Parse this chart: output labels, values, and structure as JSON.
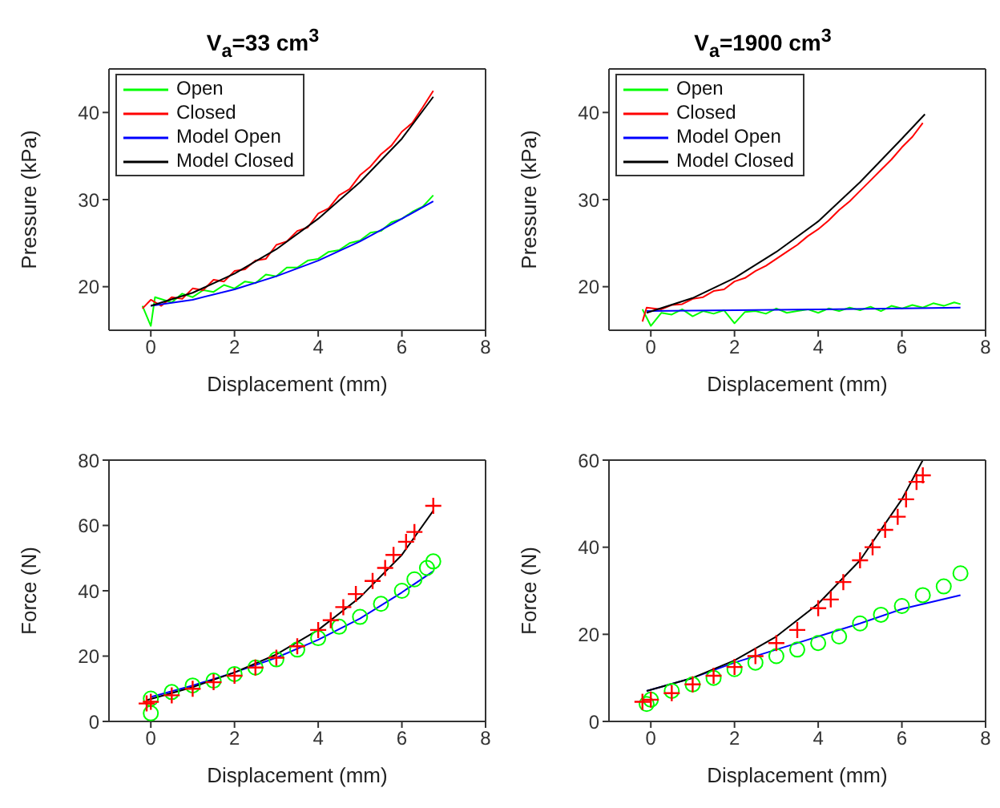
{
  "chart_data": [
    {
      "type": "line",
      "title": "V$_{a}$=33 cm$^{3}$",
      "xlabel": "Displacement (mm)",
      "ylabel": "Pressure (kPa)",
      "xlim": [
        -1,
        8
      ],
      "xticks": [
        0,
        2,
        4,
        6,
        8
      ],
      "ylim": [
        15,
        45
      ],
      "yticks": [
        20,
        30,
        40
      ],
      "legend": "top left",
      "series": [
        {
          "name": "Open",
          "color": "#00ff00",
          "marker": "none",
          "x": [
            -0.2,
            0,
            0.1,
            0.5,
            0.75,
            1,
            1.25,
            1.5,
            1.75,
            2,
            2.25,
            2.5,
            2.75,
            3,
            3.25,
            3.5,
            3.75,
            4,
            4.25,
            4.5,
            4.75,
            5,
            5.25,
            5.5,
            5.75,
            6,
            6.25,
            6.5,
            6.75
          ],
          "values": [
            17.8,
            15.5,
            18.8,
            18.2,
            19.2,
            18.8,
            19.6,
            19.4,
            20.2,
            19.8,
            20.6,
            20.4,
            21.4,
            21.2,
            22.2,
            22.2,
            23.0,
            23.2,
            24.0,
            24.2,
            25.0,
            25.3,
            26.2,
            26.4,
            27.4,
            27.8,
            28.6,
            29.2,
            30.5
          ]
        },
        {
          "name": "Closed",
          "color": "#ff0000",
          "marker": "none",
          "x": [
            -0.2,
            0,
            0.25,
            0.5,
            0.75,
            1,
            1.25,
            1.5,
            1.75,
            2,
            2.25,
            2.5,
            2.75,
            3,
            3.25,
            3.5,
            3.75,
            4,
            4.25,
            4.5,
            4.75,
            5,
            5.25,
            5.5,
            5.75,
            6,
            6.25,
            6.5,
            6.75
          ],
          "values": [
            17.5,
            18.5,
            17.8,
            18.8,
            18.6,
            19.8,
            19.6,
            20.8,
            20.6,
            21.8,
            22.0,
            23.0,
            23.2,
            24.8,
            25.2,
            26.4,
            26.8,
            28.4,
            29.0,
            30.5,
            31.2,
            32.8,
            33.8,
            35.2,
            36.2,
            37.8,
            38.8,
            40.6,
            42.5
          ]
        },
        {
          "name": "Model Open",
          "color": "#0000ff",
          "marker": "none",
          "x": [
            0,
            1,
            2,
            3,
            4,
            5,
            6,
            6.75
          ],
          "values": [
            17.8,
            18.5,
            19.7,
            21.2,
            23,
            25.2,
            27.8,
            29.8
          ]
        },
        {
          "name": "Model Closed",
          "color": "#000000",
          "marker": "none",
          "x": [
            0,
            1,
            2,
            3,
            4,
            5,
            6,
            6.75
          ],
          "values": [
            17.8,
            19.3,
            21.5,
            24.3,
            27.8,
            32,
            37,
            41.8
          ]
        }
      ]
    },
    {
      "type": "line",
      "title": "V$_{a}$=1900 cm$^{3}$",
      "xlabel": "Displacement (mm)",
      "ylabel": "Pressure (kPa)",
      "xlim": [
        -1,
        8
      ],
      "xticks": [
        0,
        2,
        4,
        6,
        8
      ],
      "ylim": [
        15,
        45
      ],
      "yticks": [
        20,
        30,
        40
      ],
      "legend": "top left",
      "series": [
        {
          "name": "Open",
          "color": "#00ff00",
          "marker": "none",
          "x": [
            -0.2,
            0,
            0.25,
            0.5,
            0.75,
            1,
            1.25,
            1.5,
            1.75,
            2,
            2.25,
            2.5,
            2.75,
            3,
            3.25,
            3.5,
            3.75,
            4,
            4.25,
            4.5,
            4.75,
            5,
            5.25,
            5.5,
            5.75,
            6,
            6.25,
            6.5,
            6.75,
            7,
            7.25,
            7.4
          ],
          "values": [
            17.4,
            15.5,
            17.0,
            16.8,
            17.4,
            16.6,
            17.2,
            16.9,
            17.3,
            15.8,
            17.1,
            17.2,
            16.9,
            17.5,
            17.0,
            17.2,
            17.4,
            17.0,
            17.5,
            17.2,
            17.6,
            17.3,
            17.7,
            17.2,
            17.8,
            17.5,
            17.9,
            17.6,
            18.1,
            17.8,
            18.2,
            18.0
          ]
        },
        {
          "name": "Closed",
          "color": "#ff0000",
          "marker": "none",
          "x": [
            -0.2,
            -0.1,
            0.25,
            0.5,
            0.75,
            1,
            1.25,
            1.5,
            1.75,
            2,
            2.25,
            2.5,
            2.75,
            3,
            3.25,
            3.5,
            3.75,
            4,
            4.25,
            4.5,
            4.75,
            5,
            5.25,
            5.5,
            5.75,
            6,
            6.25,
            6.5
          ],
          "values": [
            16.0,
            17.6,
            17.4,
            17.9,
            18.0,
            18.6,
            18.8,
            19.5,
            19.7,
            20.6,
            21.0,
            21.8,
            22.4,
            23.2,
            24.0,
            24.8,
            25.8,
            26.6,
            27.6,
            28.8,
            29.8,
            31.0,
            32.2,
            33.4,
            34.6,
            36.0,
            37.2,
            38.8
          ]
        },
        {
          "name": "Model Open",
          "color": "#0000ff",
          "marker": "none",
          "x": [
            -0.1,
            2,
            4,
            6,
            7.4
          ],
          "values": [
            17.2,
            17.3,
            17.4,
            17.5,
            17.6
          ]
        },
        {
          "name": "Model Closed",
          "color": "#000000",
          "marker": "none",
          "x": [
            -0.1,
            1,
            2,
            3,
            4,
            5,
            6,
            6.55
          ],
          "values": [
            17,
            18.7,
            21,
            24,
            27.5,
            32,
            37,
            39.8
          ]
        }
      ]
    },
    {
      "type": "scatter",
      "xlabel": "Displacement (mm)",
      "ylabel": "Force (N)",
      "xlim": [
        -1,
        8
      ],
      "xticks": [
        0,
        2,
        4,
        6,
        8
      ],
      "ylim": [
        0,
        80
      ],
      "yticks": [
        0,
        20,
        40,
        60,
        80
      ],
      "series": [
        {
          "color": "#00ff00",
          "marker": "circle",
          "x": [
            0,
            0,
            0.5,
            1,
            1.5,
            2,
            2.5,
            3,
            3.5,
            4,
            4.5,
            5,
            5.5,
            6,
            6.3,
            6.6,
            6.75
          ],
          "values": [
            2.5,
            7,
            9,
            11,
            12.5,
            14.5,
            16.5,
            19,
            22,
            25.5,
            29,
            32,
            36,
            40,
            43.5,
            47,
            49
          ]
        },
        {
          "color": "#ff0000",
          "marker": "cross",
          "x": [
            -0.1,
            0,
            0.5,
            1,
            1.5,
            2,
            2.5,
            3,
            3.5,
            4,
            4.3,
            4.6,
            4.9,
            5.3,
            5.6,
            5.8,
            6.1,
            6.3,
            6.75
          ],
          "values": [
            5.5,
            6,
            8,
            10,
            12,
            14,
            16.5,
            19.5,
            23,
            28,
            31,
            35,
            39,
            43,
            47,
            51,
            55,
            58,
            66
          ]
        },
        {
          "type": "line",
          "color": "#0000ff",
          "marker": "none",
          "x": [
            0,
            1,
            2,
            3,
            4,
            5,
            6,
            6.75
          ],
          "values": [
            7.5,
            11,
            15,
            19.5,
            25,
            31.5,
            39.5,
            46
          ]
        },
        {
          "type": "line",
          "color": "#000000",
          "marker": "none",
          "x": [
            -0.1,
            1,
            2,
            3,
            4,
            5,
            6,
            6.75
          ],
          "values": [
            6.5,
            10.5,
            15,
            20.5,
            28,
            38,
            51,
            64.5
          ]
        }
      ]
    },
    {
      "type": "scatter",
      "xlabel": "Displacement (mm)",
      "ylabel": "Force (N)",
      "xlim": [
        -1,
        8
      ],
      "xticks": [
        0,
        2,
        4,
        6,
        8
      ],
      "ylim": [
        0,
        60
      ],
      "yticks": [
        0,
        20,
        40,
        60
      ],
      "series": [
        {
          "color": "#00ff00",
          "marker": "circle",
          "x": [
            -0.1,
            0,
            0.5,
            1,
            1.5,
            2,
            2.5,
            3,
            3.5,
            4,
            4.5,
            5,
            5.5,
            6,
            6.5,
            7,
            7.4
          ],
          "values": [
            4,
            5,
            7,
            8.5,
            10,
            12,
            13.5,
            15,
            16.5,
            18,
            19.5,
            22.5,
            24.5,
            26.5,
            29,
            31,
            34
          ]
        },
        {
          "color": "#ff0000",
          "marker": "cross",
          "x": [
            -0.2,
            0,
            0.5,
            1,
            1.5,
            2,
            2.5,
            3,
            3.5,
            4,
            4.3,
            4.6,
            5,
            5.3,
            5.6,
            5.9,
            6.1,
            6.35,
            6.5
          ],
          "values": [
            4.5,
            5,
            6.5,
            8.5,
            10.5,
            12.5,
            15,
            18,
            21,
            26,
            28,
            32,
            37,
            40,
            44,
            47,
            51,
            55,
            56.5
          ]
        },
        {
          "type": "line",
          "color": "#0000ff",
          "marker": "none",
          "x": [
            -0.1,
            1,
            2,
            3,
            4,
            5,
            6,
            7.4
          ],
          "values": [
            7,
            10,
            13.5,
            16.5,
            19.5,
            22.5,
            25.8,
            29
          ]
        },
        {
          "type": "line",
          "color": "#000000",
          "marker": "none",
          "x": [
            -0.1,
            1,
            2,
            3,
            4,
            5,
            6,
            6.5
          ],
          "values": [
            7,
            10,
            14,
            19.5,
            27,
            37,
            51,
            60
          ]
        }
      ]
    }
  ]
}
